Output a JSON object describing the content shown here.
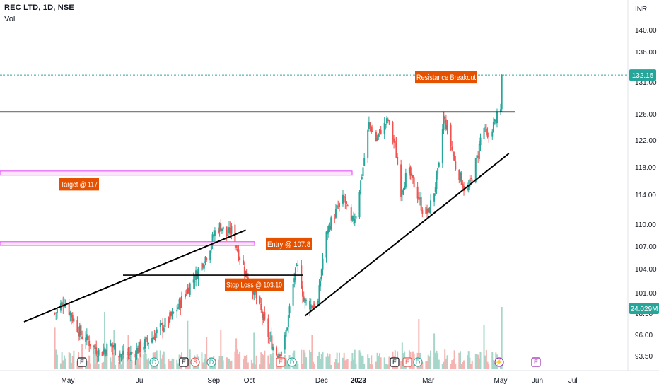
{
  "header": {
    "title": "REC LTD, 1D, NSE",
    "volume_label": "Vol",
    "currency": "INR"
  },
  "colors": {
    "up": "#26a69a",
    "down": "#ef5350",
    "vol_up": "#a5d6c9",
    "vol_down": "#f5b3b1",
    "annotation_bg": "#e65100",
    "target_band": "#e040fb",
    "price_line": "#26a69a",
    "trendline": "#000000"
  },
  "chart_data": {
    "type": "candlestick",
    "symbol": "REC LTD",
    "interval": "1D",
    "exchange": "NSE",
    "y_axis_ticks": [
      140.0,
      136.0,
      131.0,
      126.0,
      122.0,
      118.0,
      114.0,
      110.0,
      107.0,
      104.0,
      101.0,
      98.5,
      96.0,
      93.5
    ],
    "x_axis_ticks": [
      "May",
      "Jul",
      "Sep",
      "Oct",
      "Dec",
      "2023",
      "Mar",
      "May",
      "Jun",
      "Jul"
    ],
    "last_price": "132.15",
    "last_volume": "24.029M",
    "annotations": [
      {
        "text": "Resistance Breakout",
        "price": 131.8
      },
      {
        "text": "Target @ 117",
        "price": 115.5
      },
      {
        "text": "Entry @ 107.8",
        "price": 107.3
      },
      {
        "text": "Stop Loss @ 103.10",
        "price": 102.0
      }
    ],
    "horizontal_lines": [
      {
        "label": "resistance",
        "price": 126.3
      },
      {
        "label": "stop-loss-level",
        "price": 103.2
      }
    ],
    "target_band": {
      "from": 116.8,
      "to": 117.4
    },
    "entry_band": {
      "from": 107.1,
      "to": 107.6
    },
    "trendlines": [
      {
        "label": "upper-trendline",
        "from": {
          "date": "2022-03-25",
          "price": 97.5
        },
        "to": {
          "date": "2022-09-28",
          "price": 109.2
        }
      },
      {
        "label": "rising-support",
        "from": {
          "date": "2022-11-17",
          "price": 98.2
        },
        "to": {
          "date": "2023-05-08",
          "price": 120.0
        }
      }
    ],
    "events": [
      "E",
      "D",
      "E",
      "S",
      "D",
      "E",
      "D",
      "E",
      "E",
      "D",
      "⚡",
      "E"
    ],
    "price_path": [
      [
        "2022-04-20",
        98.5
      ],
      [
        "2022-04-28",
        100.0
      ],
      [
        "2022-05-05",
        98.0
      ],
      [
        "2022-05-12",
        96.0
      ],
      [
        "2022-05-20",
        95.0
      ],
      [
        "2022-05-28",
        93.8
      ],
      [
        "2022-06-06",
        94.8
      ],
      [
        "2022-06-15",
        93.6
      ],
      [
        "2022-06-25",
        93.8
      ],
      [
        "2022-07-01",
        94.5
      ],
      [
        "2022-07-10",
        95.5
      ],
      [
        "2022-07-20",
        97.0
      ],
      [
        "2022-07-30",
        98.5
      ],
      [
        "2022-08-10",
        101.5
      ],
      [
        "2022-08-20",
        104.0
      ],
      [
        "2022-08-28",
        106.5
      ],
      [
        "2022-09-02",
        109.0
      ],
      [
        "2022-09-07",
        109.8
      ],
      [
        "2022-09-12",
        108.5
      ],
      [
        "2022-09-16",
        109.2
      ],
      [
        "2022-09-22",
        106.0
      ],
      [
        "2022-09-28",
        103.5
      ],
      [
        "2022-10-03",
        102.0
      ],
      [
        "2022-10-10",
        99.0
      ],
      [
        "2022-10-18",
        95.5
      ],
      [
        "2022-10-24",
        93.8
      ],
      [
        "2022-10-30",
        94.5
      ],
      [
        "2022-11-04",
        99.0
      ],
      [
        "2022-11-08",
        103.0
      ],
      [
        "2022-11-12",
        104.5
      ],
      [
        "2022-11-16",
        100.0
      ],
      [
        "2022-11-22",
        99.5
      ],
      [
        "2022-11-28",
        99.8
      ],
      [
        "2022-12-01",
        104.0
      ],
      [
        "2022-12-04",
        108.0
      ],
      [
        "2022-12-08",
        110.0
      ],
      [
        "2022-12-14",
        112.0
      ],
      [
        "2022-12-20",
        113.5
      ],
      [
        "2022-12-26",
        110.0
      ],
      [
        "2022-12-30",
        111.5
      ],
      [
        "2023-01-05",
        118.0
      ],
      [
        "2023-01-10",
        124.5
      ],
      [
        "2023-01-16",
        122.0
      ],
      [
        "2023-01-20",
        123.5
      ],
      [
        "2023-01-26",
        125.0
      ],
      [
        "2023-02-01",
        121.0
      ],
      [
        "2023-02-06",
        114.5
      ],
      [
        "2023-02-12",
        117.5
      ],
      [
        "2023-02-18",
        115.0
      ],
      [
        "2023-02-24",
        112.0
      ],
      [
        "2023-03-01",
        111.5
      ],
      [
        "2023-03-06",
        114.5
      ],
      [
        "2023-03-10",
        118.0
      ],
      [
        "2023-03-14",
        125.5
      ],
      [
        "2023-03-18",
        123.0
      ],
      [
        "2023-03-24",
        118.0
      ],
      [
        "2023-03-28",
        116.5
      ],
      [
        "2023-04-02",
        114.0
      ],
      [
        "2023-04-06",
        116.0
      ],
      [
        "2023-04-12",
        120.0
      ],
      [
        "2023-04-16",
        124.5
      ],
      [
        "2023-04-20",
        122.0
      ],
      [
        "2023-04-24",
        124.0
      ],
      [
        "2023-04-28",
        125.5
      ],
      [
        "2023-05-01",
        126.5
      ],
      [
        "2023-05-02",
        132.15
      ]
    ]
  }
}
